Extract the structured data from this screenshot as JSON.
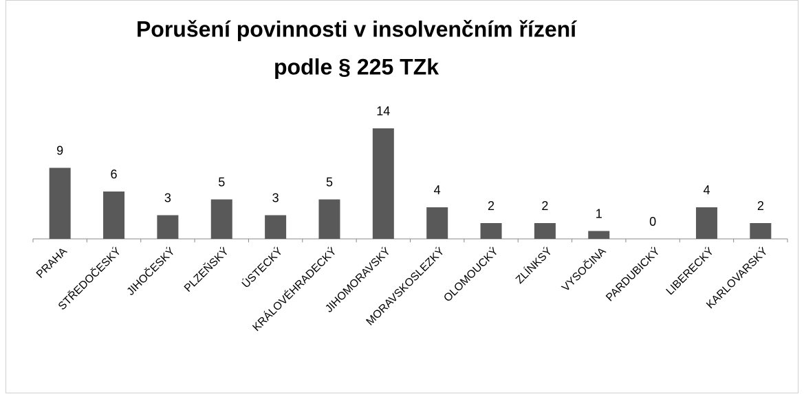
{
  "chart_data": {
    "type": "bar",
    "title": [
      "Porušení povinnosti v insolvenčním řízení",
      "podle § 225 TZk"
    ],
    "categories": [
      "PRAHA",
      "STŘEDOČESKÝ",
      "JIHOČESKÝ",
      "PLZEŇSKÝ",
      "ÚSTECKÝ",
      "KRÁLOVÉHRADECKÝ",
      "JIHOMORAVSKÝ",
      "MORAVSKOSLEZKÝ",
      "OLOMOUCKÝ",
      "ZLÍNKSÝ",
      "VYSOČINA",
      "PARDUBICKÝ",
      "LIBERECKÝ",
      "KARLOVARSKÝ"
    ],
    "values": [
      9,
      6,
      3,
      5,
      3,
      5,
      14,
      4,
      2,
      2,
      1,
      0,
      4,
      2
    ],
    "color": "#595959"
  }
}
